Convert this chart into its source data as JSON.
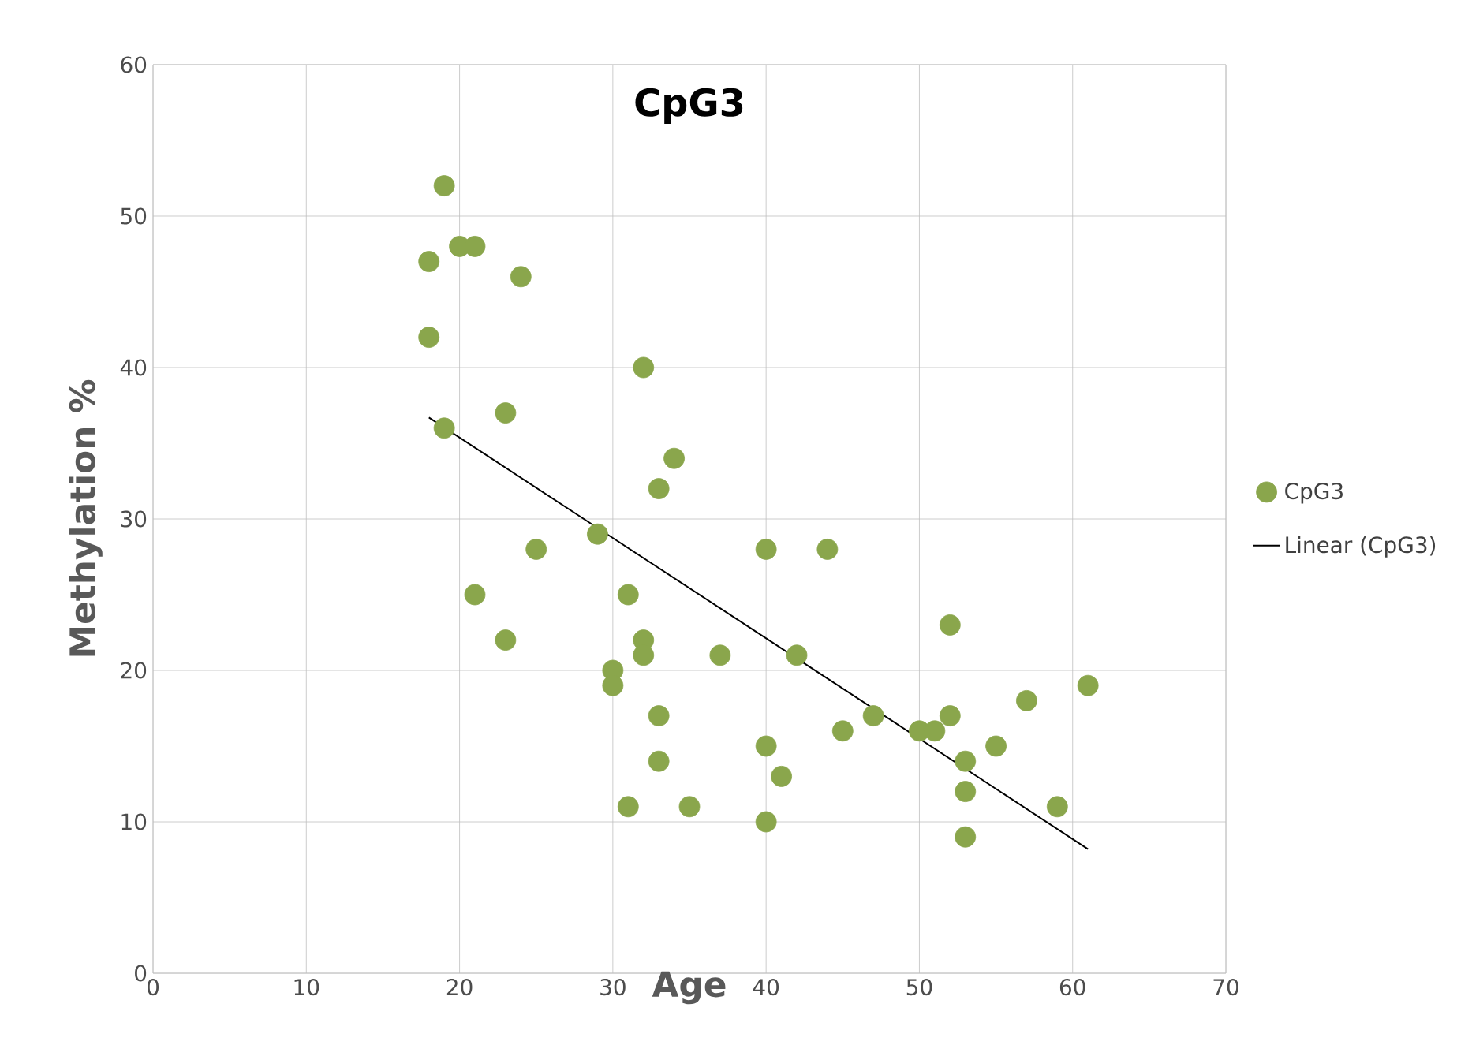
{
  "chart_data": {
    "type": "scatter",
    "title": "CpG3",
    "xlabel": "Age",
    "ylabel": "Methylation %",
    "xlim": [
      0,
      70
    ],
    "ylim": [
      0,
      60
    ],
    "xticks": [
      0,
      10,
      20,
      30,
      40,
      50,
      60,
      70
    ],
    "yticks": [
      0,
      10,
      20,
      30,
      40,
      50,
      60
    ],
    "grid": true,
    "legend": "right",
    "series": [
      {
        "name": "CpG3",
        "marker": "circle",
        "color": "#8aa64c",
        "x": [
          19,
          18,
          20,
          21,
          24,
          18,
          32,
          19,
          23,
          34,
          33,
          25,
          29,
          21,
          31,
          23,
          32,
          32,
          30,
          30,
          33,
          33,
          37,
          40,
          44,
          42,
          40,
          41,
          40,
          31,
          35,
          45,
          47,
          50,
          51,
          52,
          52,
          53,
          53,
          53,
          55,
          57,
          59,
          61
        ],
        "values": [
          52,
          47,
          48,
          48,
          46,
          42,
          40,
          36,
          37,
          34,
          32,
          28,
          29,
          25,
          25,
          22,
          22,
          21,
          20,
          19,
          17,
          14,
          21,
          28,
          28,
          21,
          15,
          13,
          10,
          11,
          11,
          16,
          17,
          16,
          16,
          23,
          17,
          14,
          12,
          9,
          15,
          18,
          11,
          19
        ]
      },
      {
        "name": "Linear (CpG3)",
        "type": "line",
        "color": "#000000",
        "line_style": "solid",
        "marker": "none",
        "x": [
          18,
          61
        ],
        "values": [
          36.7,
          8.2
        ]
      }
    ]
  }
}
